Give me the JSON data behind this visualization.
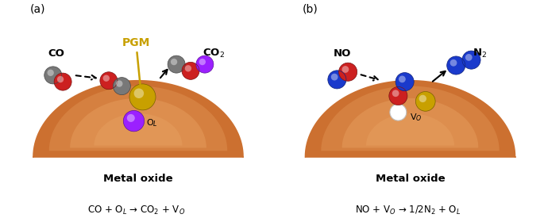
{
  "panel_a_label": "(a)",
  "panel_b_label": "(b)",
  "panel_a_equation": "CO + O$_L$ → CO$_2$ + V$_O$",
  "panel_b_equation": "NO + V$_O$ → 1/2N$_2$ + O$_L$",
  "metal_oxide_text": "Metal oxide",
  "pgm_label": "PGM",
  "OL_label": "O$_L$",
  "VO_label": "V$_O$",
  "CO_label": "CO",
  "CO2_label": "CO$_2$",
  "NO_label": "NO",
  "N2_label": "N$_2$",
  "color_red": "#CC2020",
  "color_gray": "#787878",
  "color_purple": "#9B20FF",
  "color_gold": "#C8A000",
  "color_blue": "#1A3ACC",
  "color_white": "#FFFFFF",
  "color_oxide_base": "#CC7030",
  "color_oxide_light": "#E8904A",
  "color_oxide_highlight": "#F0B070"
}
